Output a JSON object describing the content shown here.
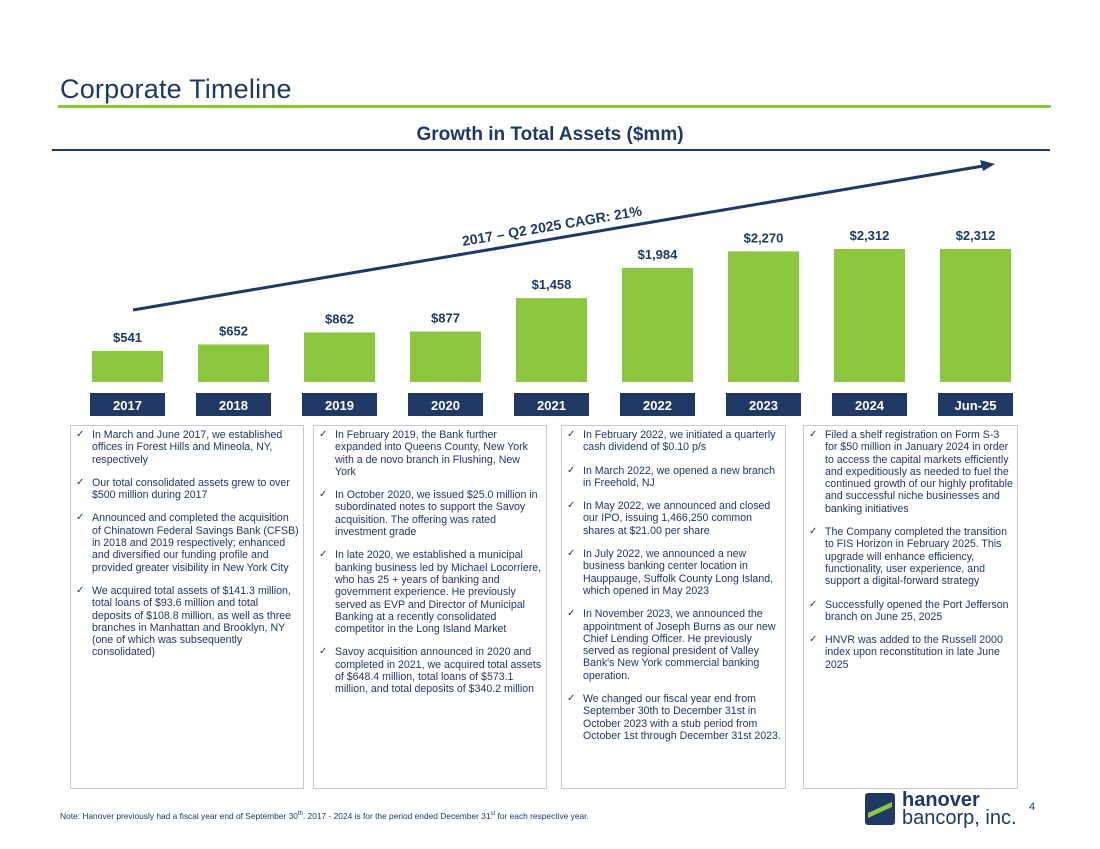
{
  "header": {
    "title": "Corporate Timeline",
    "chart_title": "Growth in Total Assets ($mm)"
  },
  "chart_data": {
    "type": "bar",
    "title": "Growth in Total Assets ($mm)",
    "categories": [
      "2017",
      "2018",
      "2019",
      "2020",
      "2021",
      "2022",
      "2023",
      "2024",
      "Jun-25"
    ],
    "values": [
      541,
      652,
      862,
      877,
      1458,
      1984,
      2270,
      2312,
      2312
    ],
    "value_labels": [
      "$541",
      "$652",
      "$862",
      "$877",
      "$1,458",
      "$1,984",
      "$2,270",
      "$2,312",
      "$2,312"
    ],
    "annotation": "2017 – Q2 2025  CAGR: 21%",
    "bar_color": "#8dc63f",
    "label_box_color": "#1f3864",
    "grid": false
  },
  "columns": [
    {
      "items": [
        "In March and June 2017, we established offices in Forest Hills and Mineola, NY, respectively",
        "Our total consolidated assets grew to over $500 million during 2017",
        "Announced and completed the acquisition of Chinatown Federal Savings Bank (CFSB) in 2018 and 2019 respectively; enhanced and diversified our funding profile and provided greater visibility in New York City",
        "We acquired total assets of $141.3 million, total loans of $93.6 million and total deposits of $108.8 million, as well as three branches in Manhattan and Brooklyn, NY (one of which was subsequently consolidated)"
      ]
    },
    {
      "items": [
        "In February 2019, the Bank further expanded into Queens County, New York with a de novo branch in Flushing, New York",
        "In October 2020, we issued $25.0 million in subordinated notes to support the Savoy acquisition. The offering was rated investment grade",
        "In late 2020, we established a municipal banking business led by Michael Locorriere, who has 25 + years of banking and government experience. He previously served as EVP and Director of Municipal Banking at a recently consolidated competitor in the Long Island Market",
        "Savoy acquisition announced in 2020 and completed in 2021, we acquired total assets of $648.4 million, total loans of $573.1 million, and total deposits of $340.2 million"
      ]
    },
    {
      "items": [
        "In February 2022, we initiated a quarterly cash dividend of $0.10 p/s",
        "In March 2022, we opened a new branch in Freehold, NJ",
        "In May 2022, we announced and closed our IPO, issuing 1,466,250 common shares at $21.00 per share",
        "In July 2022, we announced a new business banking center location in Hauppauge, Suffolk County Long Island, which opened in May 2023",
        "In November 2023, we announced the appointment of Joseph Burns as our new Chief Lending Officer. He previously served as regional president of Valley Bank's New York commercial banking operation.",
        "We changed our fiscal year end from September 30th to December 31st in October 2023 with a stub period from October 1st through December 31st 2023."
      ]
    },
    {
      "items": [
        "Filed a shelf registration on Form S-3 for $50 million in January 2024 in order to access the capital markets efficiently and expeditiously as needed to fuel the continued growth of our highly profitable and successful niche businesses and banking initiatives",
        "The Company completed the transition to FIS Horizon in February 2025. This upgrade will enhance efficiency, functionality, user experience, and support a digital-forward strategy",
        "Successfully opened the Port Jefferson branch on June 25, 2025",
        "HNVR was added to the Russell 2000 index upon reconstitution in late June 2025"
      ]
    }
  ],
  "footnote": {
    "text_a": "Note: Hanover previously had a fiscal year end of September 30",
    "sup_a": "th",
    "text_b": ". 2017 - 2024 is for the period ended December 31",
    "sup_b": "st",
    "text_c": " for each respective year."
  },
  "logo": {
    "word1": "hanover",
    "word2": "bancorp, inc."
  },
  "page_number": "4",
  "colors": {
    "navy": "#1f3864",
    "green": "#8dc63f"
  }
}
